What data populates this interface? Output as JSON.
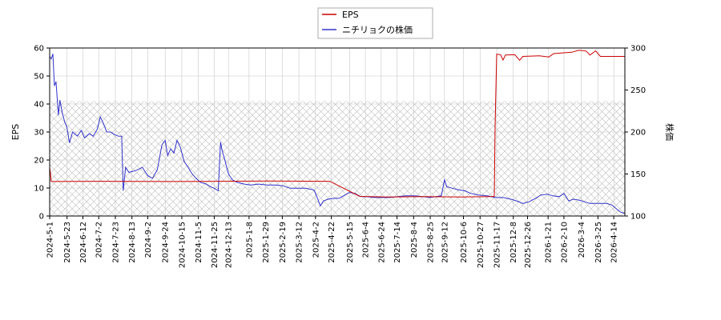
{
  "chart_data": {
    "type": "line",
    "title": "",
    "legend": {
      "placement": "top-center",
      "entries": [
        {
          "name": "EPS",
          "color": "#cc0000"
        },
        {
          "name": "ニチリョクの株価",
          "color": "#3333cc"
        }
      ]
    },
    "grid": true,
    "hatched_region": {
      "y_left_from": 0,
      "y_left_to": 41
    },
    "y_left": {
      "label": "EPS",
      "min": 0,
      "max": 60,
      "ticks": [
        0,
        10,
        20,
        30,
        40,
        50,
        60
      ]
    },
    "y_right": {
      "label": "株価",
      "min": 100,
      "max": 300,
      "ticks": [
        100,
        150,
        200,
        250,
        300
      ]
    },
    "x": {
      "type": "date",
      "min": "2024-05-01",
      "max": "2026-04-28",
      "ticks": [
        "2024-5-1",
        "2024-5-23",
        "2024-6-12",
        "2024-7-2",
        "2024-7-23",
        "2024-8-13",
        "2024-9-2",
        "2024-9-24",
        "2024-10-15",
        "2024-11-5",
        "2024-11-25",
        "2024-12-13",
        "2025-1-8",
        "2025-1-29",
        "2025-2-19",
        "2025-3-12",
        "2025-4-2",
        "2025-4-22",
        "2025-5-15",
        "2025-6-4",
        "2025-6-24",
        "2025-7-14",
        "2025-8-4",
        "2025-8-25",
        "2025-9-12",
        "2025-10-6",
        "2025-10-27",
        "2025-11-17",
        "2025-12-8",
        "2025-12-26",
        "2026-1-21",
        "2026-2-10",
        "2026-3-4",
        "2026-3-25",
        "2026-4-14"
      ]
    },
    "series": [
      {
        "name": "EPS",
        "axis": "left",
        "color": "#cc0000",
        "points": [
          [
            "2024-05-01",
            17.5
          ],
          [
            "2024-05-03",
            12.3
          ],
          [
            "2024-07-01",
            12.4
          ],
          [
            "2024-10-01",
            12.3
          ],
          [
            "2024-12-01",
            12.4
          ],
          [
            "2025-02-01",
            12.5
          ],
          [
            "2025-04-20",
            12.4
          ],
          [
            "2025-05-28",
            7.0
          ],
          [
            "2025-07-01",
            6.8
          ],
          [
            "2025-08-15",
            6.9
          ],
          [
            "2025-10-01",
            6.8
          ],
          [
            "2025-11-10",
            6.9
          ],
          [
            "2025-11-14",
            7.0
          ],
          [
            "2025-11-15",
            32.0
          ],
          [
            "2025-11-17",
            57.8
          ],
          [
            "2025-11-22",
            57.6
          ],
          [
            "2025-11-25",
            55.7
          ],
          [
            "2025-11-28",
            57.5
          ],
          [
            "2025-12-10",
            57.6
          ],
          [
            "2025-12-16",
            55.6
          ],
          [
            "2025-12-20",
            57.0
          ],
          [
            "2026-01-10",
            57.2
          ],
          [
            "2026-01-22",
            56.8
          ],
          [
            "2026-01-28",
            58.0
          ],
          [
            "2026-02-20",
            58.5
          ],
          [
            "2026-03-01",
            59.2
          ],
          [
            "2026-03-10",
            58.9
          ],
          [
            "2026-03-15",
            57.5
          ],
          [
            "2026-03-22",
            59.0
          ],
          [
            "2026-03-28",
            57.0
          ],
          [
            "2026-04-28",
            57.0
          ]
        ]
      },
      {
        "name": "ニチリョクの株価",
        "axis": "right",
        "color": "#3333cc",
        "points": [
          [
            "2024-05-01",
            290
          ],
          [
            "2024-05-03",
            287
          ],
          [
            "2024-05-05",
            293
          ],
          [
            "2024-05-07",
            255
          ],
          [
            "2024-05-09",
            260
          ],
          [
            "2024-05-12",
            220
          ],
          [
            "2024-05-14",
            238
          ],
          [
            "2024-05-17",
            222
          ],
          [
            "2024-05-20",
            212
          ],
          [
            "2024-05-23",
            205
          ],
          [
            "2024-05-26",
            187
          ],
          [
            "2024-05-30",
            200
          ],
          [
            "2024-06-05",
            195
          ],
          [
            "2024-06-10",
            202
          ],
          [
            "2024-06-14",
            193
          ],
          [
            "2024-06-20",
            198
          ],
          [
            "2024-06-25",
            195
          ],
          [
            "2024-06-30",
            203
          ],
          [
            "2024-07-04",
            218
          ],
          [
            "2024-07-08",
            210
          ],
          [
            "2024-07-12",
            200
          ],
          [
            "2024-07-17",
            200
          ],
          [
            "2024-07-22",
            197
          ],
          [
            "2024-07-27",
            195
          ],
          [
            "2024-07-31",
            195
          ],
          [
            "2024-08-02",
            130
          ],
          [
            "2024-08-05",
            158
          ],
          [
            "2024-08-09",
            152
          ],
          [
            "2024-08-14",
            153
          ],
          [
            "2024-08-20",
            155
          ],
          [
            "2024-08-26",
            158
          ],
          [
            "2024-09-02",
            148
          ],
          [
            "2024-09-08",
            145
          ],
          [
            "2024-09-14",
            155
          ],
          [
            "2024-09-20",
            185
          ],
          [
            "2024-09-24",
            190
          ],
          [
            "2024-09-27",
            172
          ],
          [
            "2024-10-01",
            180
          ],
          [
            "2024-10-05",
            175
          ],
          [
            "2024-10-09",
            190
          ],
          [
            "2024-10-13",
            182
          ],
          [
            "2024-10-18",
            165
          ],
          [
            "2024-10-23",
            158
          ],
          [
            "2024-10-28",
            150
          ],
          [
            "2024-11-02",
            145
          ],
          [
            "2024-11-08",
            140
          ],
          [
            "2024-11-15",
            138
          ],
          [
            "2024-11-20",
            135
          ],
          [
            "2024-11-25",
            133
          ],
          [
            "2024-11-30",
            130
          ],
          [
            "2024-12-03",
            188
          ],
          [
            "2024-12-05",
            178
          ],
          [
            "2024-12-08",
            168
          ],
          [
            "2024-12-13",
            150
          ],
          [
            "2024-12-18",
            143
          ],
          [
            "2024-12-24",
            140
          ],
          [
            "2025-01-02",
            138
          ],
          [
            "2025-01-10",
            137
          ],
          [
            "2025-01-20",
            138
          ],
          [
            "2025-01-31",
            137
          ],
          [
            "2025-02-10",
            137
          ],
          [
            "2025-02-20",
            136
          ],
          [
            "2025-03-01",
            133
          ],
          [
            "2025-03-10",
            133
          ],
          [
            "2025-03-20",
            133
          ],
          [
            "2025-03-31",
            131
          ],
          [
            "2025-04-05",
            120
          ],
          [
            "2025-04-08",
            112
          ],
          [
            "2025-04-12",
            118
          ],
          [
            "2025-04-18",
            120
          ],
          [
            "2025-04-25",
            121
          ],
          [
            "2025-05-02",
            121
          ],
          [
            "2025-05-09",
            125
          ],
          [
            "2025-05-15",
            128
          ],
          [
            "2025-05-22",
            127
          ],
          [
            "2025-05-29",
            123
          ],
          [
            "2025-06-05",
            123
          ],
          [
            "2025-06-15",
            122
          ],
          [
            "2025-06-25",
            122
          ],
          [
            "2025-07-05",
            122
          ],
          [
            "2025-07-15",
            123
          ],
          [
            "2025-07-25",
            124
          ],
          [
            "2025-08-05",
            124
          ],
          [
            "2025-08-15",
            123
          ],
          [
            "2025-08-25",
            122
          ],
          [
            "2025-09-01",
            123
          ],
          [
            "2025-09-08",
            124
          ],
          [
            "2025-09-12",
            143
          ],
          [
            "2025-09-15",
            135
          ],
          [
            "2025-09-22",
            133
          ],
          [
            "2025-09-30",
            131
          ],
          [
            "2025-10-08",
            130
          ],
          [
            "2025-10-15",
            127
          ],
          [
            "2025-10-25",
            125
          ],
          [
            "2025-11-05",
            124
          ],
          [
            "2025-11-15",
            122
          ],
          [
            "2025-11-25",
            122
          ],
          [
            "2025-12-05",
            120
          ],
          [
            "2025-12-12",
            118
          ],
          [
            "2025-12-20",
            115
          ],
          [
            "2025-12-28",
            117
          ],
          [
            "2026-01-05",
            121
          ],
          [
            "2026-01-12",
            125
          ],
          [
            "2026-01-20",
            126
          ],
          [
            "2026-01-27",
            124
          ],
          [
            "2026-02-04",
            123
          ],
          [
            "2026-02-10",
            127
          ],
          [
            "2026-02-16",
            118
          ],
          [
            "2026-02-22",
            120
          ],
          [
            "2026-03-01",
            119
          ],
          [
            "2026-03-08",
            117
          ],
          [
            "2026-03-15",
            115
          ],
          [
            "2026-03-22",
            115
          ],
          [
            "2026-03-29",
            115
          ],
          [
            "2026-04-05",
            115
          ],
          [
            "2026-04-12",
            113
          ],
          [
            "2026-04-18",
            108
          ],
          [
            "2026-04-22",
            105
          ],
          [
            "2026-04-28",
            103
          ]
        ]
      }
    ]
  }
}
